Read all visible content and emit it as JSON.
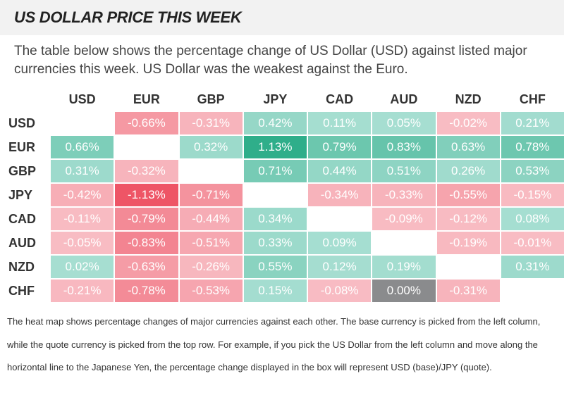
{
  "header": {
    "title": "US DOLLAR PRICE THIS WEEK"
  },
  "intro": "The table below shows the percentage change of US Dollar (USD) against listed major currencies this week. US Dollar was the weakest against the Euro.",
  "table": {
    "columns": [
      "USD",
      "EUR",
      "GBP",
      "JPY",
      "CAD",
      "AUD",
      "NZD",
      "CHF"
    ],
    "rows": [
      {
        "label": "USD",
        "cells": [
          null,
          "-0.66%",
          "-0.31%",
          "0.42%",
          "0.11%",
          "0.05%",
          "-0.02%",
          "0.21%"
        ]
      },
      {
        "label": "EUR",
        "cells": [
          "0.66%",
          null,
          "0.32%",
          "1.13%",
          "0.79%",
          "0.83%",
          "0.63%",
          "0.78%"
        ]
      },
      {
        "label": "GBP",
        "cells": [
          "0.31%",
          "-0.32%",
          null,
          "0.71%",
          "0.44%",
          "0.51%",
          "0.26%",
          "0.53%"
        ]
      },
      {
        "label": "JPY",
        "cells": [
          "-0.42%",
          "-1.13%",
          "-0.71%",
          null,
          "-0.34%",
          "-0.33%",
          "-0.55%",
          "-0.15%"
        ]
      },
      {
        "label": "CAD",
        "cells": [
          "-0.11%",
          "-0.79%",
          "-0.44%",
          "0.34%",
          null,
          "-0.09%",
          "-0.12%",
          "0.08%"
        ]
      },
      {
        "label": "AUD",
        "cells": [
          "-0.05%",
          "-0.83%",
          "-0.51%",
          "0.33%",
          "0.09%",
          null,
          "-0.19%",
          "-0.01%"
        ]
      },
      {
        "label": "NZD",
        "cells": [
          "0.02%",
          "-0.63%",
          "-0.26%",
          "0.55%",
          "0.12%",
          "0.19%",
          null,
          "0.31%"
        ]
      },
      {
        "label": "CHF",
        "cells": [
          "-0.21%",
          "-0.78%",
          "-0.53%",
          "0.15%",
          "-0.08%",
          "0.00%",
          "-0.31%",
          null
        ]
      }
    ]
  },
  "footer": "The heat map shows percentage changes of major currencies against each other. The base currency is picked from the left column, while the quote currency is picked from the top row. For example, if you pick the US Dollar from the left column and move along the horizontal line to the Japanese Yen, the percentage change displayed in the box will represent USD (base)/JPY (quote)."
}
